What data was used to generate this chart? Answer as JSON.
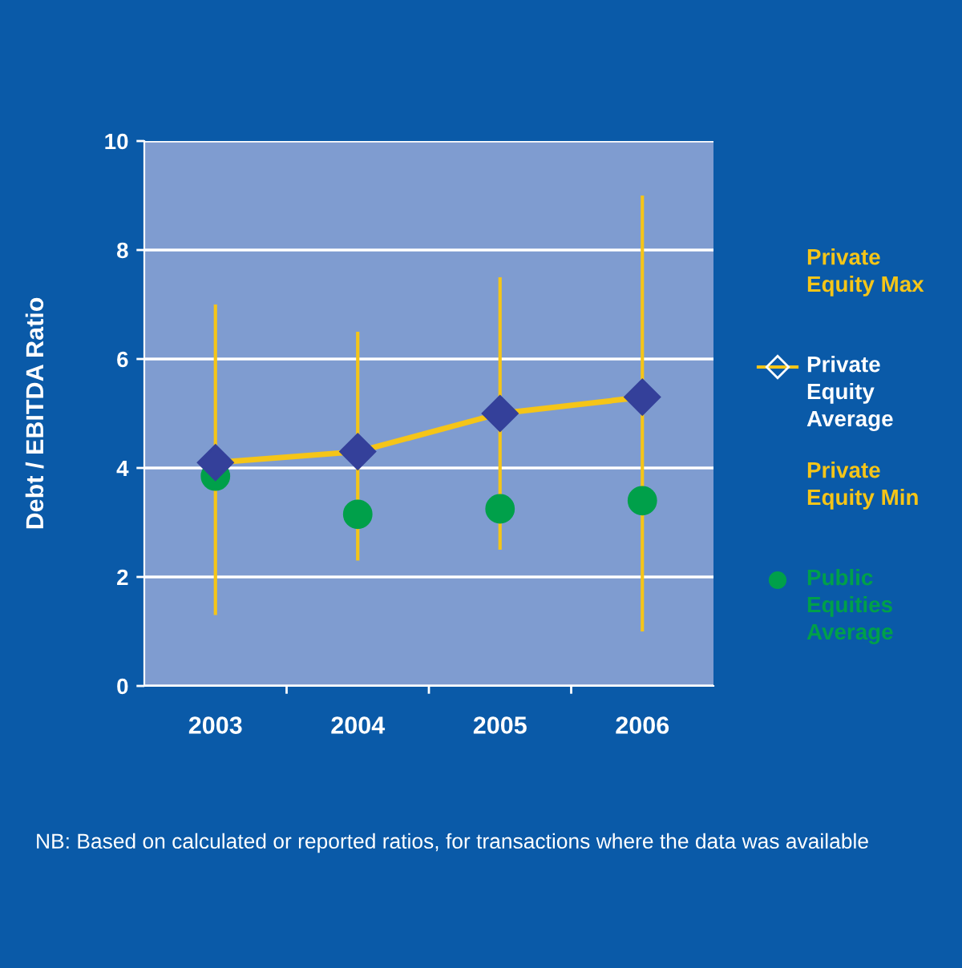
{
  "chart_data": {
    "type": "line",
    "ylabel": "Debt / EBITDA Ratio",
    "categories": [
      "2003",
      "2004",
      "2005",
      "2006"
    ],
    "series": [
      {
        "name": "Private Equity Average",
        "color": "#f5c518",
        "marker": "diamond",
        "values": [
          4.1,
          4.3,
          5.0,
          5.3
        ],
        "errors": [
          [
            1.3,
            7.0
          ],
          [
            2.3,
            6.5
          ],
          [
            2.5,
            7.5
          ],
          [
            1.0,
            9.0
          ]
        ]
      },
      {
        "name": "Public Equities Average",
        "type": "scatter",
        "color": "#00a04a",
        "marker": "circle",
        "values": [
          3.85,
          3.15,
          3.25,
          3.4
        ]
      }
    ],
    "ylim": [
      0,
      10
    ],
    "yticks": [
      0,
      2,
      4,
      6,
      8,
      10
    ],
    "grid": "y",
    "legend": "right",
    "annotations": [
      "Private Equity Max",
      "Private Equity Min",
      "NB: Based on calculated or reported ratios, for transactions where the data was available"
    ]
  }
}
